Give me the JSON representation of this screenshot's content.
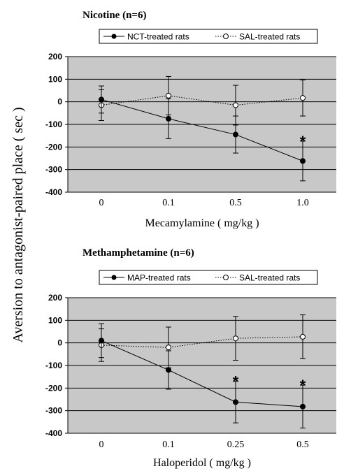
{
  "y_axis_label": "Aversion to antagonist-paired place ( sec )",
  "chart_data": [
    {
      "type": "line",
      "title": "Nicotine (n=6)",
      "xlabel": "Mecamylamine ( mg/kg )",
      "categories": [
        "0",
        "0.1",
        "0.5",
        "1.0"
      ],
      "ylim": [
        -400,
        200
      ],
      "yticks": [
        200,
        100,
        0,
        -100,
        -200,
        -300,
        -400
      ],
      "grid": true,
      "legend_placement": "top",
      "series": [
        {
          "name": "NCT-treated rats",
          "marker": "filled-circle",
          "line_style": "solid",
          "values": [
            10,
            -75,
            -145,
            -262
          ],
          "error": [
            60,
            88,
            82,
            88
          ],
          "significant": [
            false,
            false,
            false,
            true
          ]
        },
        {
          "name": "SAL-treated rats",
          "marker": "open-circle",
          "line_style": "dotted",
          "values": [
            -15,
            27,
            -15,
            17
          ],
          "error": [
            68,
            85,
            88,
            80
          ],
          "significant": [
            false,
            false,
            false,
            false
          ]
        }
      ],
      "significance_marker": "*"
    },
    {
      "type": "line",
      "title": "Methamphetamine (n=6)",
      "xlabel": "Haloperidol ( mg/kg )",
      "categories": [
        "0",
        "0.1",
        "0.25",
        "0.5"
      ],
      "ylim": [
        -400,
        200
      ],
      "yticks": [
        200,
        100,
        0,
        -100,
        -200,
        -300,
        -400
      ],
      "grid": true,
      "legend_placement": "top",
      "series": [
        {
          "name": "MAP-treated rats",
          "marker": "filled-circle",
          "line_style": "solid",
          "values": [
            10,
            -120,
            -262,
            -282
          ],
          "error": [
            75,
            85,
            92,
            95
          ],
          "significant": [
            false,
            false,
            true,
            true
          ]
        },
        {
          "name": "SAL-treated rats",
          "marker": "open-circle",
          "line_style": "dotted",
          "values": [
            -10,
            -20,
            20,
            27
          ],
          "error": [
            72,
            90,
            97,
            97
          ],
          "significant": [
            false,
            false,
            false,
            false
          ]
        }
      ],
      "significance_marker": "*"
    }
  ]
}
